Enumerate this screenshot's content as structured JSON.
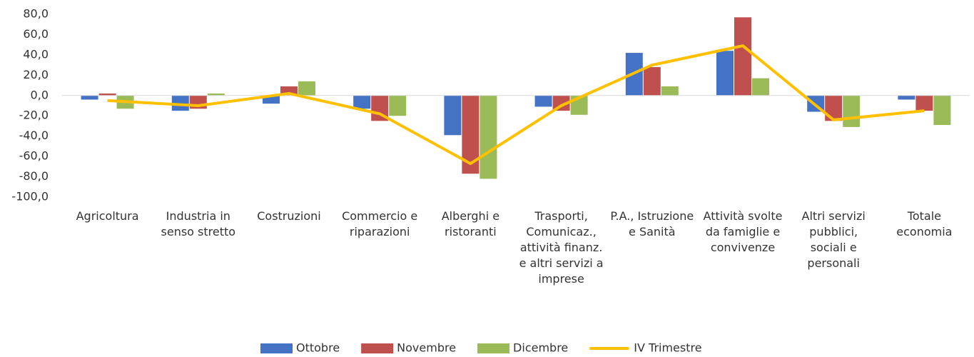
{
  "chart_data": {
    "type": "bar",
    "categories": [
      "Agricoltura",
      "Industria in senso stretto",
      "Costruzioni",
      "Commercio e riparazioni",
      "Alberghi e ristoranti",
      "Trasporti, Comunicaz., attività finanz. e altri servizi a imprese",
      "P.A., Istruzione e Sanità",
      "Attività svolte da famiglie e convivenze",
      "Altri servizi pubblici, sociali e personali",
      "Totale economia"
    ],
    "series": [
      {
        "name": "Ottobre",
        "color": "#4472c4",
        "values": [
          -4,
          -15,
          -8,
          -13,
          -39,
          -11,
          42,
          44,
          -16,
          -4
        ]
      },
      {
        "name": "Novembre",
        "color": "#c0504d",
        "values": [
          2,
          -13,
          9,
          -25,
          -77,
          -15,
          28,
          77,
          -25,
          -15
        ]
      },
      {
        "name": "Dicembre",
        "color": "#9bbb59",
        "values": [
          -13,
          2,
          14,
          -20,
          -82,
          -19,
          9,
          17,
          -31,
          -29
        ]
      },
      {
        "name": "IV Trimestre",
        "type": "line",
        "color": "#ffc000",
        "values": [
          -5,
          -10,
          2,
          -18,
          -67,
          -10,
          30,
          49,
          -24,
          -15
        ]
      }
    ],
    "ylim": [
      -100,
      80
    ],
    "yticks": [
      {
        "value": -100,
        "label": "-100,0"
      },
      {
        "value": -80,
        "label": "-80,0"
      },
      {
        "value": -60,
        "label": "-60,0"
      },
      {
        "value": -40,
        "label": "-40,0"
      },
      {
        "value": -20,
        "label": "-20,0"
      },
      {
        "value": 0,
        "label": "0,0"
      },
      {
        "value": 20,
        "label": "20,0"
      },
      {
        "value": 40,
        "label": "40,0"
      },
      {
        "value": 60,
        "label": "60,0"
      },
      {
        "value": 80,
        "label": "80,0"
      }
    ],
    "grid": false,
    "legend": "bottom"
  }
}
